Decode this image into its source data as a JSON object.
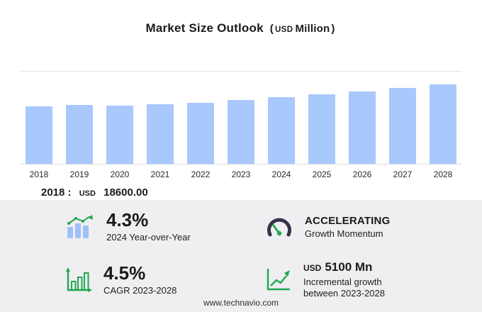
{
  "title": {
    "main": "Market Size Outlook",
    "paren_open": "(",
    "currency": "USD",
    "unit": "Million",
    "paren_close": ")"
  },
  "chart_data": {
    "type": "bar",
    "title": "Market Size Outlook (USD Million)",
    "xlabel": "",
    "ylabel": "USD Million",
    "categories": [
      "2018",
      "2019",
      "2020",
      "2021",
      "2022",
      "2023",
      "2024",
      "2025",
      "2026",
      "2027",
      "2028"
    ],
    "values": [
      18600,
      19200,
      18950,
      19300,
      19950,
      20700,
      21600,
      22600,
      23600,
      24650,
      25800
    ],
    "ylim": [
      0,
      30000
    ],
    "grid": false,
    "legend": false,
    "bar_color": "#a9c8fb"
  },
  "annotation": {
    "year": "2018",
    "separator": ":",
    "currency": "USD",
    "value": "18600.00"
  },
  "stats": {
    "yoy": {
      "icon": "bar-chart-growth-arrow-icon",
      "value": "4.3%",
      "label": "2024 Year-over-Year"
    },
    "momentum": {
      "icon": "gauge-icon",
      "value": "ACCELERATING",
      "label": "Growth Momentum"
    },
    "cagr": {
      "icon": "bar-chart-axes-icon",
      "value": "4.5%",
      "label": "CAGR 2023-2028"
    },
    "incremental": {
      "icon": "line-growth-icon",
      "currency": "USD",
      "value": "5100 Mn",
      "label_line1": "Incremental growth",
      "label_line2": "between 2023-2028"
    }
  },
  "footer": {
    "url": "www.technavio.com"
  },
  "colors": {
    "bar": "#a9c8fb",
    "panel_background": "#efeff1",
    "accent_green": "#1fa84f",
    "gauge_dark": "#33334a",
    "text": "#1b1b1b"
  }
}
